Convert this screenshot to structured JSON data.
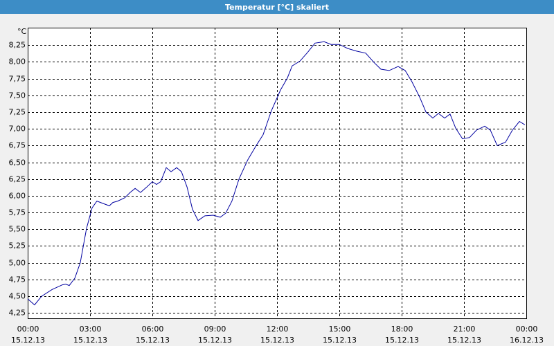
{
  "chart_data": {
    "type": "line",
    "title": "Temperatur [°C] skaliert",
    "y_label": "°C",
    "x": [
      0,
      0.33,
      0.67,
      1.17,
      1.67,
      1.83,
      2,
      2.27,
      2.53,
      2.83,
      3.1,
      3.33,
      3.67,
      3.93,
      4.1,
      4.33,
      4.67,
      4.93,
      5.17,
      5.43,
      5.73,
      6,
      6.2,
      6.4,
      6.67,
      6.9,
      7.17,
      7.4,
      7.67,
      7.93,
      8.2,
      8.53,
      8.93,
      9.27,
      9.53,
      9.83,
      10.17,
      10.6,
      11,
      11.33,
      11.73,
      12.17,
      12.5,
      12.73,
      13.1,
      13.47,
      13.83,
      14.27,
      14.6,
      15,
      15.4,
      15.83,
      16.27,
      16.67,
      17,
      17.4,
      17.83,
      18.17,
      18.5,
      18.87,
      19.17,
      19.5,
      19.77,
      20.07,
      20.33,
      20.6,
      20.93,
      21.27,
      21.6,
      22,
      22.27,
      22.6,
      23,
      23.33,
      23.67,
      23.93
    ],
    "series": [
      {
        "color": "#0000a0",
        "values": [
          4.46,
          4.37,
          4.5,
          4.6,
          4.67,
          4.68,
          4.66,
          4.77,
          5.0,
          5.51,
          5.82,
          5.92,
          5.88,
          5.85,
          5.9,
          5.92,
          5.97,
          6.05,
          6.11,
          6.05,
          6.13,
          6.21,
          6.17,
          6.21,
          6.42,
          6.36,
          6.42,
          6.36,
          6.13,
          5.8,
          5.63,
          5.7,
          5.71,
          5.68,
          5.74,
          5.92,
          6.25,
          6.54,
          6.75,
          6.91,
          7.27,
          7.58,
          7.76,
          7.94,
          8.01,
          8.14,
          8.28,
          8.3,
          8.26,
          8.26,
          8.2,
          8.16,
          8.13,
          7.99,
          7.89,
          7.87,
          7.93,
          7.87,
          7.7,
          7.47,
          7.25,
          7.16,
          7.23,
          7.16,
          7.22,
          7.01,
          6.85,
          6.87,
          6.98,
          7.04,
          6.98,
          6.75,
          6.8,
          6.98,
          7.11,
          7.06
        ]
      }
    ],
    "xlim": [
      0,
      24
    ],
    "ylim": [
      4.17,
      8.51
    ],
    "xticks": [
      {
        "value": 0,
        "label": "00:00",
        "date": "15.12.13"
      },
      {
        "value": 3,
        "label": "03:00",
        "date": "15.12.13"
      },
      {
        "value": 6,
        "label": "06:00",
        "date": "15.12.13"
      },
      {
        "value": 9,
        "label": "09:00",
        "date": "15.12.13"
      },
      {
        "value": 12,
        "label": "12:00",
        "date": "15.12.13"
      },
      {
        "value": 15,
        "label": "15:00",
        "date": "15.12.13"
      },
      {
        "value": 18,
        "label": "18:00",
        "date": "15.12.13"
      },
      {
        "value": 21,
        "label": "21:00",
        "date": "15.12.13"
      },
      {
        "value": 24,
        "label": "00:00",
        "date": "16.12.13"
      }
    ],
    "yticks": [
      {
        "value": 4.25,
        "label": "4,25"
      },
      {
        "value": 4.5,
        "label": "4,50"
      },
      {
        "value": 4.75,
        "label": "4,75"
      },
      {
        "value": 5,
        "label": "5,00"
      },
      {
        "value": 5.25,
        "label": "5,25"
      },
      {
        "value": 5.5,
        "label": "5,50"
      },
      {
        "value": 5.75,
        "label": "5,75"
      },
      {
        "value": 6,
        "label": "6,00"
      },
      {
        "value": 6.25,
        "label": "6,25"
      },
      {
        "value": 6.5,
        "label": "6,50"
      },
      {
        "value": 6.75,
        "label": "6,75"
      },
      {
        "value": 7,
        "label": "7,00"
      },
      {
        "value": 7.25,
        "label": "7,25"
      },
      {
        "value": 7.5,
        "label": "7,50"
      },
      {
        "value": 7.75,
        "label": "7,75"
      },
      {
        "value": 8,
        "label": "8,00"
      },
      {
        "value": 8.25,
        "label": "8,25"
      }
    ],
    "grid": true
  }
}
